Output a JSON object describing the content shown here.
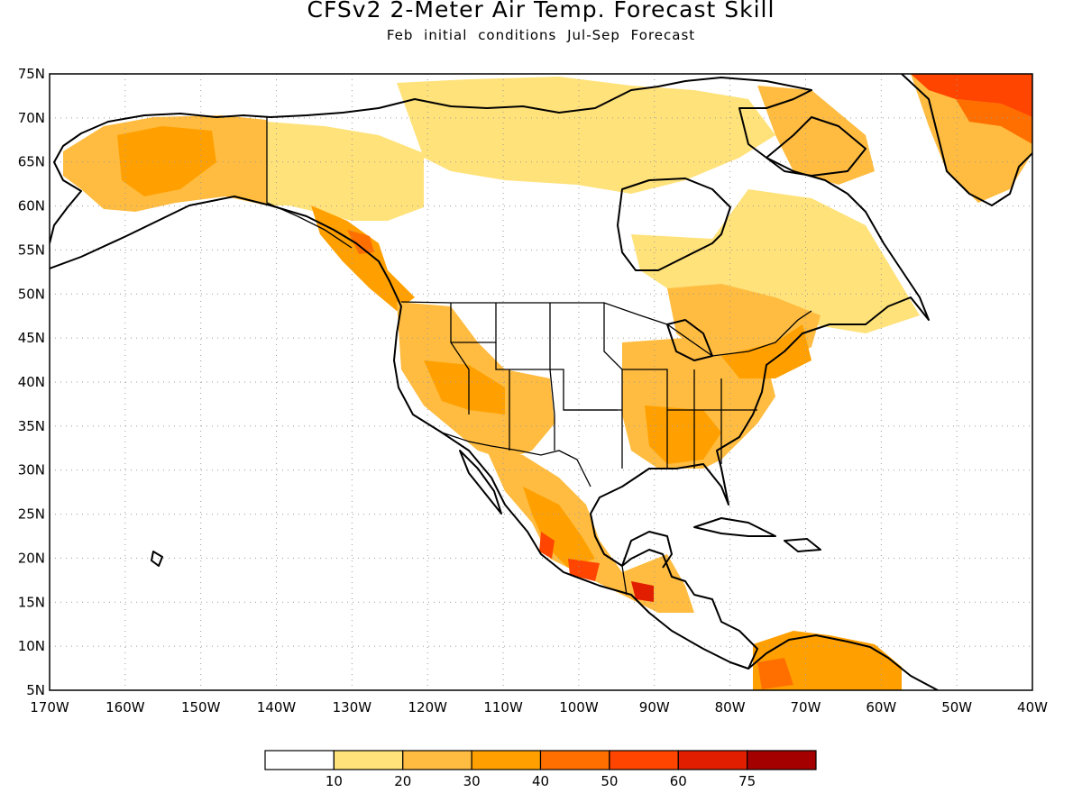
{
  "map": {
    "title": "CFSv2 2-Meter Air Temp. Forecast Skill",
    "subtitle": "Feb initial conditions  Jul-Sep Forecast",
    "lat_ticks": [
      "75N",
      "70N",
      "65N",
      "60N",
      "55N",
      "50N",
      "45N",
      "40N",
      "35N",
      "30N",
      "25N",
      "20N",
      "15N",
      "10N",
      "5N"
    ],
    "lon_ticks": [
      "170W",
      "160W",
      "150W",
      "140W",
      "130W",
      "120W",
      "110W",
      "100W",
      "90W",
      "80W",
      "70W",
      "60W",
      "50W",
      "40W"
    ],
    "extent": {
      "lon_min": -170,
      "lon_max": -40,
      "lat_min": 5,
      "lat_max": 75
    },
    "gridlines": true,
    "colorbar": {
      "labels": [
        "10",
        "20",
        "30",
        "40",
        "50",
        "60",
        "75"
      ],
      "colors": [
        "#ffffff",
        "#ffe27a",
        "#ffbc40",
        "#ffa000",
        "#ff6f00",
        "#ff4500",
        "#e21e00",
        "#a50000"
      ]
    }
  }
}
